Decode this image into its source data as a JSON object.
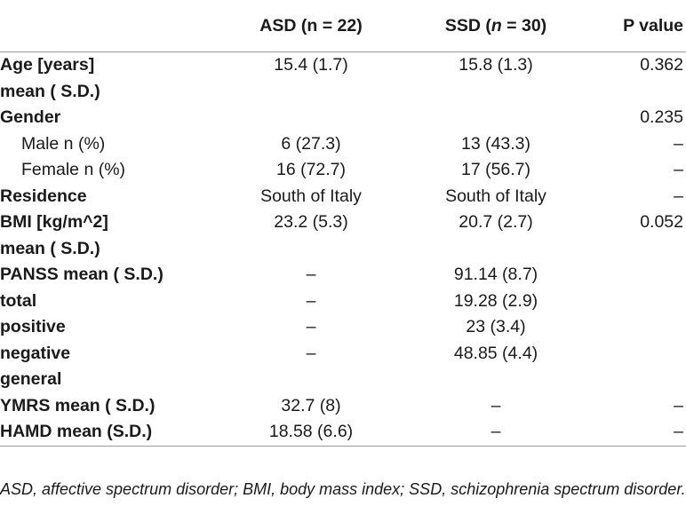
{
  "header": {
    "col0": "",
    "col1": "ASD (n = 22)",
    "col2_pre": "SSD (",
    "col2_n": "n",
    "col2_post": " = 30)",
    "col3": "P value"
  },
  "rows": [
    {
      "label": "Age [years]",
      "asd": "15.4 (1.7)",
      "ssd": "15.8 (1.3)",
      "p": "0.362"
    },
    {
      "label": "mean ( S.D.)",
      "asd": "",
      "ssd": "",
      "p": ""
    },
    {
      "label": "Gender",
      "asd": "",
      "ssd": "",
      "p": "0.235"
    },
    {
      "label": "Male n (%)",
      "asd": "6 (27.3)",
      "ssd": "13 (43.3)",
      "p": "–"
    },
    {
      "label": "Female n (%)",
      "asd": "16 (72.7)",
      "ssd": "17 (56.7)",
      "p": "–"
    },
    {
      "label": "Residence",
      "asd": "South of Italy",
      "ssd": "South of Italy",
      "p": "–"
    },
    {
      "label": "BMI [kg/m^2]",
      "asd": "23.2 (5.3)",
      "ssd": "20.7 (2.7)",
      "p": "0.052"
    },
    {
      "label": "mean ( S.D.)",
      "asd": "",
      "ssd": "",
      "p": ""
    },
    {
      "label": "PANSS mean ( S.D.)",
      "asd": "–",
      "ssd": "91.14 (8.7)",
      "p": ""
    },
    {
      "label": "total",
      "asd": "–",
      "ssd": "19.28 (2.9)",
      "p": ""
    },
    {
      "label": "positive",
      "asd": "–",
      "ssd": "23 (3.4)",
      "p": ""
    },
    {
      "label": "negative",
      "asd": "–",
      "ssd": "48.85 (4.4)",
      "p": ""
    },
    {
      "label": "general",
      "asd": "",
      "ssd": "",
      "p": ""
    },
    {
      "label": "YMRS mean ( S.D.)",
      "asd": "32.7 (8)",
      "ssd": "–",
      "p": "–"
    },
    {
      "label": "HAMD mean (S.D.)",
      "asd": "18.58 (6.6)",
      "ssd": "–",
      "p": "–"
    }
  ],
  "footnote": "ASD, affective spectrum disorder; BMI, body mass index; SSD, schizophrenia spectrum disorder."
}
